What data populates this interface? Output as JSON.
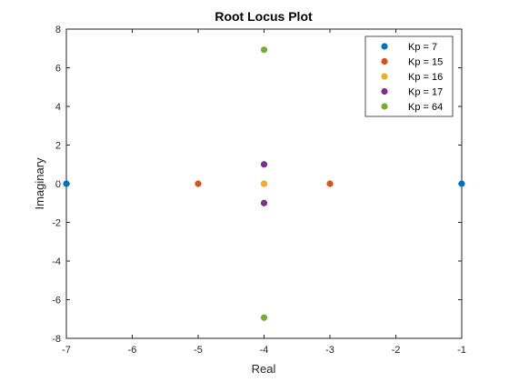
{
  "chart_data": {
    "type": "scatter",
    "title": "Root Locus Plot",
    "xlabel": "Real",
    "ylabel": "Imaginary",
    "xlim": [
      -7,
      -1
    ],
    "ylim": [
      -8,
      8
    ],
    "xticks": [
      "-7",
      "-6",
      "-5",
      "-4",
      "-3",
      "-2",
      "-1"
    ],
    "yticks": [
      "-8",
      "-6",
      "-4",
      "-2",
      "0",
      "2",
      "4",
      "6",
      "8"
    ],
    "grid": false,
    "legend_position": "top-right",
    "series": [
      {
        "name": "Kp = 7",
        "color": "#0072BD",
        "points": [
          {
            "x": -7,
            "y": 0
          },
          {
            "x": -1,
            "y": 0
          }
        ]
      },
      {
        "name": "Kp = 15",
        "color": "#D95319",
        "points": [
          {
            "x": -5,
            "y": 0
          },
          {
            "x": -3,
            "y": 0
          }
        ]
      },
      {
        "name": "Kp = 16",
        "color": "#EDB120",
        "points": [
          {
            "x": -4,
            "y": 0
          },
          {
            "x": -4,
            "y": 0
          }
        ]
      },
      {
        "name": "Kp = 17",
        "color": "#7E2F8E",
        "points": [
          {
            "x": -4,
            "y": 1
          },
          {
            "x": -4,
            "y": -1
          }
        ]
      },
      {
        "name": "Kp = 64",
        "color": "#77AC30",
        "points": [
          {
            "x": -4,
            "y": 6.93
          },
          {
            "x": -4,
            "y": -6.93
          }
        ]
      }
    ]
  }
}
